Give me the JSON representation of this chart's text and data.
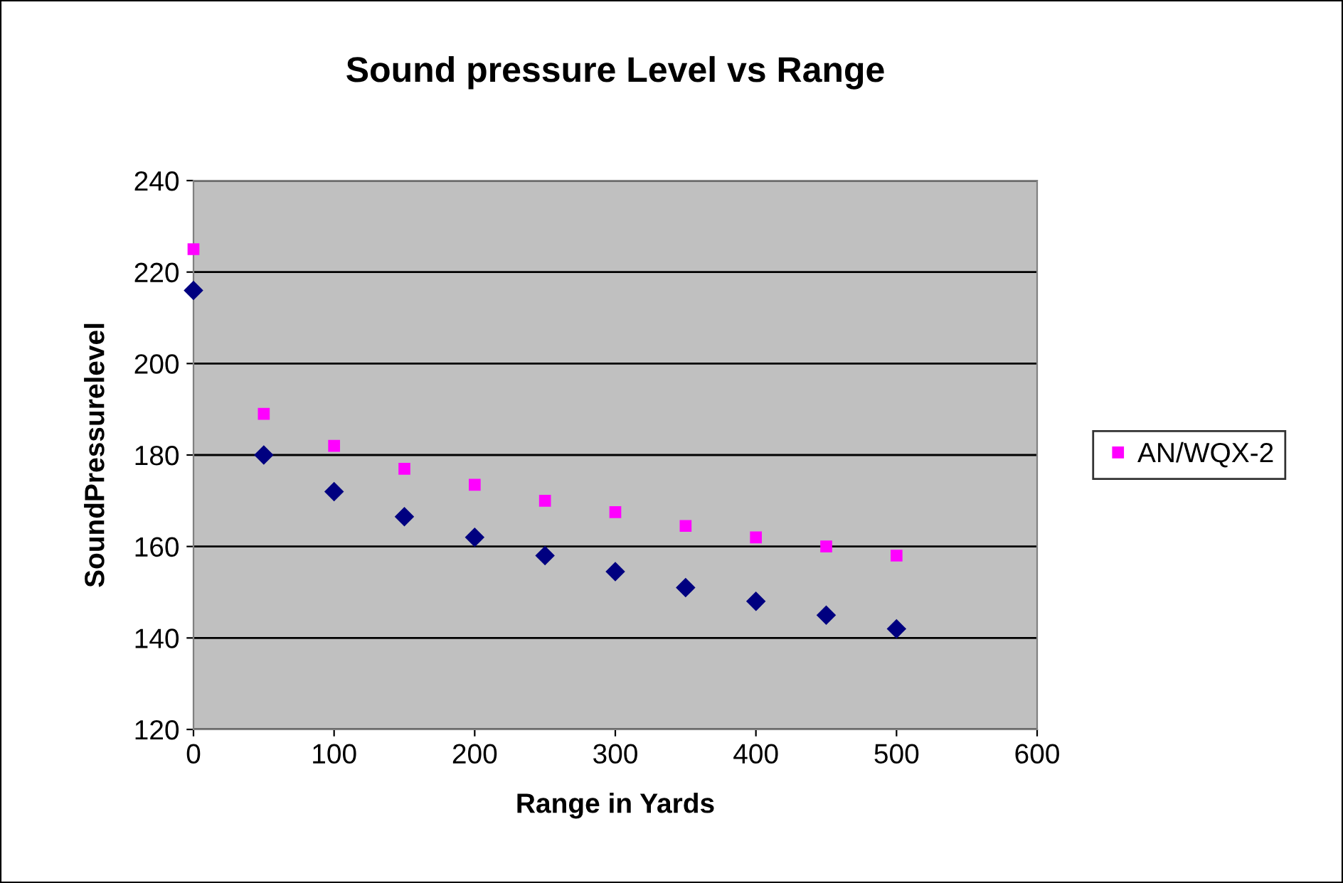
{
  "chart_data": {
    "type": "scatter",
    "title": "Sound pressure Level vs Range",
    "xlabel": "Range in Yards",
    "ylabel": "SoundPressurelevel",
    "x": [
      0,
      50,
      100,
      150,
      200,
      250,
      300,
      350,
      400,
      450,
      500
    ],
    "series": [
      {
        "color": "#000080",
        "marker": "diamond",
        "values": [
          216,
          180,
          172,
          166.5,
          162,
          158,
          154.5,
          151,
          148,
          145,
          142
        ]
      },
      {
        "name": "AN/WQX-2",
        "color": "#ff00ff",
        "marker": "square",
        "values": [
          225,
          189,
          182,
          177,
          173.5,
          170,
          167.5,
          164.5,
          162,
          160,
          158
        ]
      }
    ],
    "xlim": [
      0,
      600
    ],
    "xticks": [
      0,
      100,
      200,
      300,
      400,
      500,
      600
    ],
    "ylim": [
      120,
      240
    ],
    "yticks": [
      120,
      140,
      160,
      180,
      200,
      220,
      240
    ],
    "grid": "y",
    "legend": "right"
  }
}
